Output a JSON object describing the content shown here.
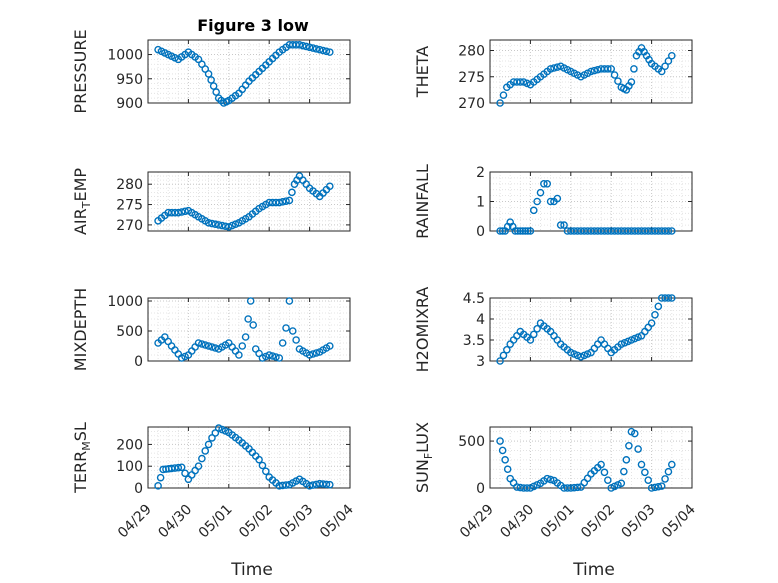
{
  "figure": {
    "title": "Figure 3 low",
    "xlabel": "Time",
    "x_tick_labels": [
      "04/29",
      "04/30",
      "05/01",
      "05/02",
      "05/03",
      "05/04"
    ],
    "marker_color": "#0072BD"
  },
  "chart_data": [
    {
      "type": "scatter",
      "title": "Figure 3 low",
      "ylabel": "PRESSURE",
      "ylim": [
        900,
        1030
      ],
      "yticks": [
        900,
        950,
        1000
      ],
      "ytick_labels": [
        "900",
        "950",
        "1000"
      ],
      "xlim": [
        "04/29",
        "05/04"
      ],
      "grid": true,
      "x": [
        "04/29 06:00",
        "04/29 12:00",
        "04/29 18:00",
        "04/30 00:00",
        "04/30 06:00",
        "04/30 12:00",
        "04/30 15:00",
        "04/30 18:00",
        "04/30 21:00",
        "05/01 00:00",
        "05/01 06:00",
        "05/01 12:00",
        "05/01 18:00",
        "05/02 00:00",
        "05/02 06:00",
        "05/02 12:00",
        "05/02 18:00",
        "05/03 00:00",
        "05/03 06:00",
        "05/03 12:00"
      ],
      "y": [
        1010,
        1000,
        990,
        1005,
        990,
        960,
        935,
        910,
        900,
        905,
        920,
        945,
        965,
        985,
        1005,
        1020,
        1020,
        1015,
        1010,
        1005
      ]
    },
    {
      "type": "scatter",
      "ylabel": "THETA",
      "ylim": [
        270,
        282
      ],
      "yticks": [
        270,
        275,
        280
      ],
      "ytick_labels": [
        "270",
        "275",
        "280"
      ],
      "xlim": [
        "04/29",
        "05/04"
      ],
      "grid": true,
      "x": [
        "04/29 06:00",
        "04/29 10:00",
        "04/29 14:00",
        "04/29 20:00",
        "04/30 00:00",
        "04/30 06:00",
        "04/30 12:00",
        "04/30 18:00",
        "05/01 00:00",
        "05/01 06:00",
        "05/01 12:00",
        "05/01 18:00",
        "05/02 00:00",
        "05/02 06:00",
        "05/02 09:00",
        "05/02 12:00",
        "05/02 15:00",
        "05/02 18:00",
        "05/02 21:00",
        "05/03 00:00",
        "05/03 06:00",
        "05/03 12:00"
      ],
      "y": [
        270,
        273,
        274,
        274,
        273.5,
        275,
        276.5,
        277,
        276,
        275,
        276,
        276.5,
        276.5,
        273,
        272.5,
        274,
        279,
        280.5,
        279,
        277.5,
        276,
        279
      ]
    },
    {
      "type": "scatter",
      "ylabel": "AIR_TEMP",
      "ylabel_parts": [
        "AIR",
        "T",
        "EMP"
      ],
      "ylim": [
        268.5,
        283
      ],
      "yticks": [
        270,
        275,
        280
      ],
      "ytick_labels": [
        "270",
        "275",
        "280"
      ],
      "xlim": [
        "04/29",
        "05/04"
      ],
      "grid": true,
      "x": [
        "04/29 06:00",
        "04/29 12:00",
        "04/29 18:00",
        "04/30 00:00",
        "04/30 06:00",
        "04/30 12:00",
        "04/30 18:00",
        "05/01 00:00",
        "05/01 06:00",
        "05/01 12:00",
        "05/01 18:00",
        "05/02 00:00",
        "05/02 06:00",
        "05/02 12:00",
        "05/02 15:00",
        "05/02 18:00",
        "05/03 00:00",
        "05/03 06:00",
        "05/03 12:00"
      ],
      "y": [
        271,
        273,
        273,
        273.5,
        272,
        270.5,
        270,
        269.5,
        270.5,
        272,
        274,
        275.5,
        275.5,
        276,
        280,
        282,
        279,
        277,
        279.5
      ]
    },
    {
      "type": "scatter",
      "ylabel": "RAINFALL",
      "ylim": [
        0,
        2
      ],
      "yticks": [
        0,
        1,
        2
      ],
      "ytick_labels": [
        "0",
        "1",
        "2"
      ],
      "xlim": [
        "04/29",
        "05/04"
      ],
      "grid": true,
      "x": [
        "04/29 06:00",
        "04/29 09:00",
        "04/29 12:00",
        "04/29 15:00",
        "04/29 18:00",
        "04/29 21:00",
        "04/30 00:00",
        "04/30 02:00",
        "04/30 04:00",
        "04/30 06:00",
        "04/30 08:00",
        "04/30 10:00",
        "04/30 12:00",
        "04/30 14:00",
        "04/30 16:00",
        "04/30 18:00",
        "04/30 20:00",
        "04/30 22:00",
        "05/01 00:00",
        "05/01 06:00",
        "05/01 12:00",
        "05/01 18:00",
        "05/02 00:00",
        "05/02 06:00",
        "05/02 12:00",
        "05/02 18:00",
        "05/03 00:00",
        "05/03 06:00",
        "05/03 12:00"
      ],
      "y": [
        0,
        0,
        0.3,
        0,
        0,
        0,
        0,
        0.7,
        1.0,
        1.3,
        1.6,
        1.6,
        1.0,
        1.0,
        1.1,
        0.2,
        0.2,
        0,
        0,
        0,
        0,
        0,
        0,
        0,
        0,
        0,
        0,
        0,
        0
      ]
    },
    {
      "type": "scatter",
      "ylabel": "MIXDEPTH",
      "ylim": [
        0,
        1050
      ],
      "yticks": [
        0,
        500,
        1000
      ],
      "ytick_labels": [
        "0",
        "500",
        "1000"
      ],
      "xlim": [
        "04/29",
        "05/04"
      ],
      "grid": true,
      "x": [
        "04/29 06:00",
        "04/29 10:00",
        "04/29 14:00",
        "04/29 20:00",
        "04/30 00:00",
        "04/30 06:00",
        "04/30 12:00",
        "04/30 18:00",
        "05/01 00:00",
        "05/01 06:00",
        "05/01 10:00",
        "05/01 13:00",
        "05/01 16:00",
        "05/01 20:00",
        "05/02 00:00",
        "05/02 06:00",
        "05/02 10:00",
        "05/02 12:00",
        "05/02 14:00",
        "05/02 18:00",
        "05/03 00:00",
        "05/03 06:00",
        "05/03 12:00"
      ],
      "y": [
        300,
        400,
        250,
        50,
        100,
        300,
        250,
        200,
        300,
        100,
        400,
        1000,
        200,
        50,
        100,
        50,
        550,
        1000,
        500,
        200,
        100,
        150,
        250
      ]
    },
    {
      "type": "scatter",
      "ylabel": "H2OMIXRA",
      "ylim": [
        3,
        4.5
      ],
      "yticks": [
        3,
        3.5,
        4,
        4.5
      ],
      "ytick_labels": [
        "3",
        "3.5",
        "4",
        "4.5"
      ],
      "xlim": [
        "04/29",
        "05/04"
      ],
      "grid": true,
      "x": [
        "04/29 06:00",
        "04/29 12:00",
        "04/29 18:00",
        "04/30 00:00",
        "04/30 06:00",
        "04/30 12:00",
        "04/30 18:00",
        "05/01 00:00",
        "05/01 06:00",
        "05/01 12:00",
        "05/01 18:00",
        "05/02 00:00",
        "05/02 06:00",
        "05/02 12:00",
        "05/02 18:00",
        "05/03 00:00",
        "05/03 06:00",
        "05/03 12:00"
      ],
      "y": [
        3.0,
        3.4,
        3.7,
        3.5,
        3.9,
        3.7,
        3.4,
        3.2,
        3.1,
        3.2,
        3.5,
        3.2,
        3.4,
        3.5,
        3.6,
        3.9,
        4.5,
        4.5
      ]
    },
    {
      "type": "scatter",
      "ylabel": "TERR_MSL",
      "ylabel_parts": [
        "TERR",
        "M",
        "SL"
      ],
      "ylim": [
        0,
        280
      ],
      "yticks": [
        0,
        100,
        200
      ],
      "ytick_labels": [
        "0",
        "100",
        "200"
      ],
      "xlim": [
        "04/29",
        "05/04"
      ],
      "grid": true,
      "x": [
        "04/29 06:00",
        "04/29 09:00",
        "04/29 14:00",
        "04/29 20:00",
        "04/30 00:00",
        "04/30 06:00",
        "04/30 10:00",
        "04/30 14:00",
        "04/30 18:00",
        "05/01 00:00",
        "05/01 06:00",
        "05/01 12:00",
        "05/01 18:00",
        "05/02 00:00",
        "05/02 06:00",
        "05/02 12:00",
        "05/02 18:00",
        "05/03 00:00",
        "05/03 06:00",
        "05/03 12:00"
      ],
      "y": [
        10,
        85,
        90,
        95,
        40,
        100,
        170,
        230,
        275,
        255,
        220,
        180,
        130,
        50,
        10,
        15,
        40,
        10,
        20,
        15
      ]
    },
    {
      "type": "scatter",
      "ylabel": "SUN_FLUX",
      "ylabel_parts": [
        "SUN",
        "F",
        "LUX"
      ],
      "ylim": [
        0,
        650
      ],
      "yticks": [
        0,
        500
      ],
      "ytick_labels": [
        "0",
        "500"
      ],
      "xlim": [
        "04/29",
        "05/04"
      ],
      "grid": true,
      "x": [
        "04/29 06:00",
        "04/29 09:00",
        "04/29 12:00",
        "04/29 16:00",
        "04/29 20:00",
        "04/30 00:00",
        "04/30 06:00",
        "04/30 10:00",
        "04/30 14:00",
        "04/30 20:00",
        "05/01 00:00",
        "05/01 06:00",
        "05/01 12:00",
        "05/01 18:00",
        "05/02 00:00",
        "05/02 06:00",
        "05/02 09:00",
        "05/02 12:00",
        "05/02 14:00",
        "05/02 18:00",
        "05/03 00:00",
        "05/03 06:00",
        "05/03 12:00"
      ],
      "y": [
        500,
        300,
        100,
        10,
        0,
        0,
        50,
        100,
        80,
        0,
        0,
        10,
        150,
        250,
        0,
        50,
        300,
        600,
        580,
        250,
        0,
        20,
        250
      ]
    }
  ]
}
